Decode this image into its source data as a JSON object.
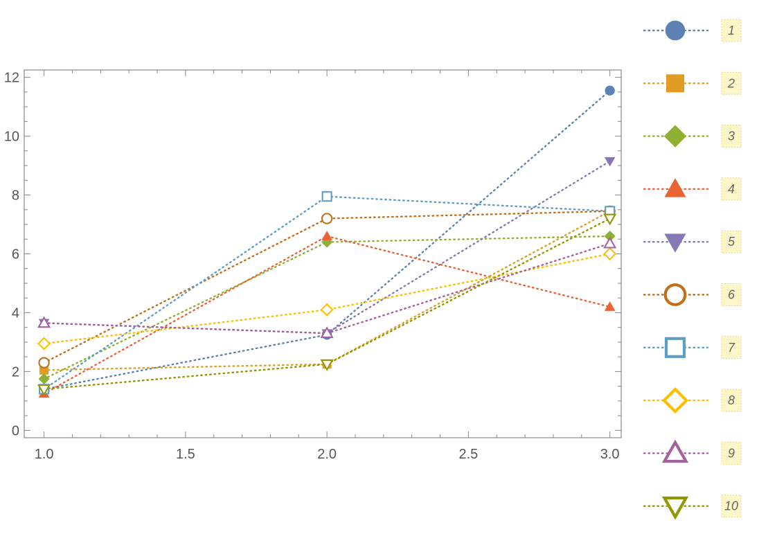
{
  "chart_data": {
    "type": "line",
    "title": "",
    "xlabel": "",
    "ylabel": "",
    "x": [
      1,
      2,
      3
    ],
    "xlim": [
      0.93,
      3.04
    ],
    "ylim": [
      -0.25,
      12.25
    ],
    "x_ticks": [
      1.0,
      1.5,
      2.0,
      2.5,
      3.0
    ],
    "x_tick_labels": [
      "1.0",
      "1.5",
      "2.0",
      "2.5",
      "3.0"
    ],
    "y_ticks": [
      0,
      2,
      4,
      6,
      8,
      10,
      12
    ],
    "y_tick_labels": [
      "0",
      "2",
      "4",
      "6",
      "8",
      "10",
      "12"
    ],
    "grid": false,
    "frame": true,
    "line_style": "dotted",
    "legend_position": "right",
    "series": [
      {
        "name": "1",
        "values": [
          1.4,
          3.25,
          11.55
        ],
        "color": "#5e81b5",
        "marker": "circle-filled"
      },
      {
        "name": "2",
        "values": [
          2.05,
          2.25,
          7.45
        ],
        "color": "#e19c24",
        "marker": "square-filled"
      },
      {
        "name": "3",
        "values": [
          1.75,
          6.4,
          6.6
        ],
        "color": "#8fb032",
        "marker": "diamond-filled"
      },
      {
        "name": "4",
        "values": [
          1.25,
          6.6,
          4.2
        ],
        "color": "#eb6235",
        "marker": "triangle-up-filled"
      },
      {
        "name": "5",
        "values": [
          3.65,
          3.3,
          9.15
        ],
        "color": "#8778b3",
        "marker": "triangle-down-filled"
      },
      {
        "name": "6",
        "values": [
          2.3,
          7.2,
          7.45
        ],
        "color": "#c56e1a",
        "marker": "circle-open"
      },
      {
        "name": "7",
        "values": [
          1.4,
          7.95,
          7.45
        ],
        "color": "#5d9ec7",
        "marker": "square-open"
      },
      {
        "name": "8",
        "values": [
          2.95,
          4.1,
          6.0
        ],
        "color": "#ffbf00",
        "marker": "diamond-open"
      },
      {
        "name": "9",
        "values": [
          3.65,
          3.3,
          6.35
        ],
        "color": "#a5609d",
        "marker": "triangle-up-open"
      },
      {
        "name": "10",
        "values": [
          1.4,
          2.25,
          7.2
        ],
        "color": "#929600",
        "marker": "triangle-down-open"
      }
    ]
  }
}
